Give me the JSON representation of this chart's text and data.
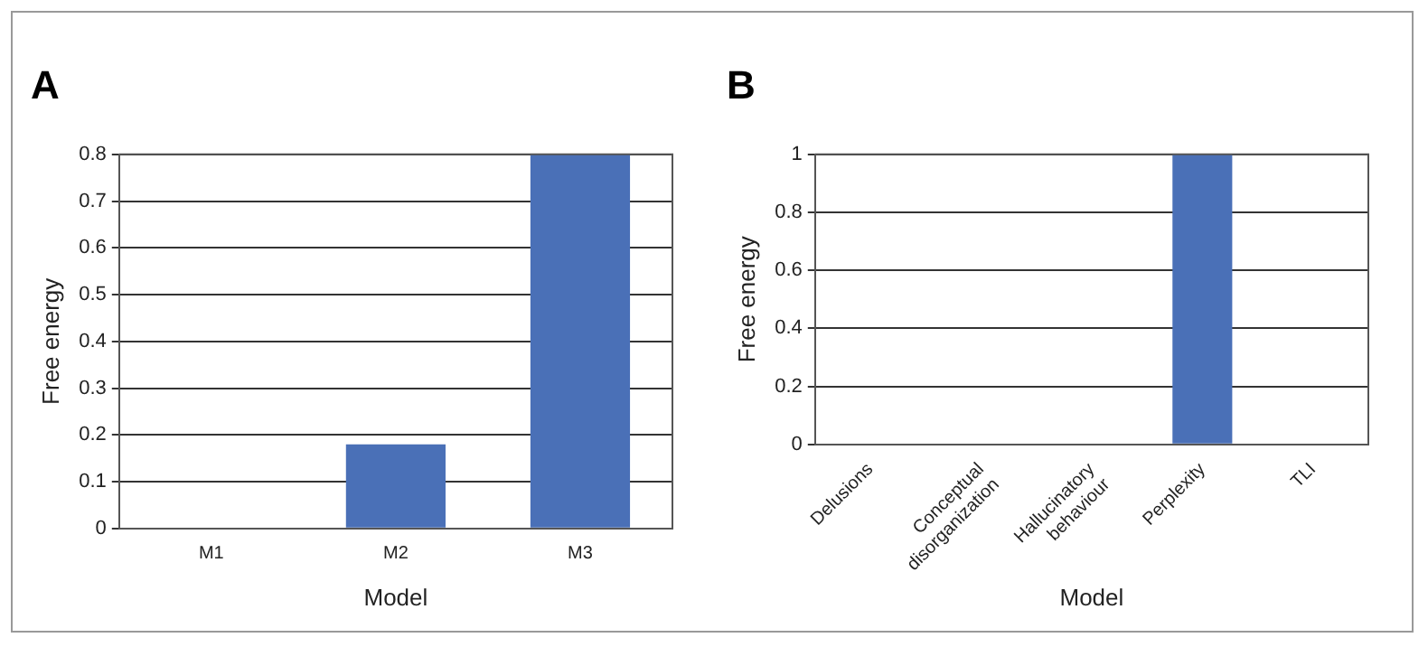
{
  "chart_data": [
    {
      "type": "bar",
      "title": "A",
      "categories": [
        "M1",
        "M2",
        "M3"
      ],
      "values": [
        0,
        0.18,
        0.8
      ],
      "color": "#4a70b7",
      "xlabel": "Model",
      "ylabel": "Free energy",
      "ylim": [
        0,
        0.8
      ],
      "yticks": [
        0,
        0.1,
        0.2,
        0.3,
        0.4,
        0.5,
        0.6,
        0.7,
        0.8
      ],
      "grid": "y",
      "legend": false
    },
    {
      "type": "bar",
      "title": "B",
      "categories": [
        "Delusions",
        "Conceptual disorganization",
        "Hallucinatory behaviour",
        "Perplexity",
        "TLI"
      ],
      "values": [
        0,
        0,
        0,
        1,
        0
      ],
      "color": "#4a70b7",
      "xlabel": "Model",
      "ylabel": "Free energy",
      "ylim": [
        0,
        1
      ],
      "yticks": [
        0,
        0.2,
        0.4,
        0.6,
        0.8,
        1
      ],
      "grid": "y",
      "legend": false
    }
  ]
}
